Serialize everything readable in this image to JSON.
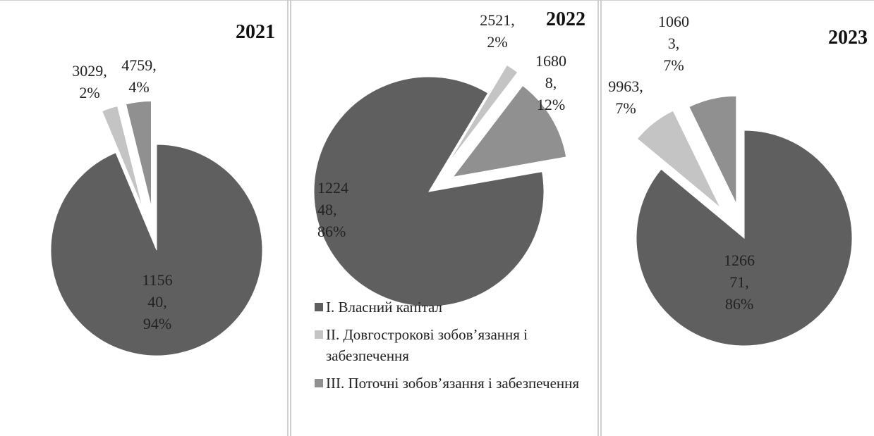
{
  "chart_data": [
    {
      "type": "pie",
      "title": "2021",
      "categories": [
        "I. Власний капітал",
        "II. Довгострокові зобов’язання і забезпечення",
        "III. Поточні зобов’язання і забезпечення"
      ],
      "values": [
        115640,
        3029,
        4759
      ],
      "value_labels": [
        "115640, 94%",
        "3029, 2%",
        "4759, 4%"
      ],
      "colors": [
        "#5f5f5f",
        "#c4c4c4",
        "#909090"
      ],
      "legend": false
    },
    {
      "type": "pie",
      "title": "2022",
      "categories": [
        "I. Власний капітал",
        "II. Довгострокові зобов’язання і забезпечення",
        "III. Поточні зобов’язання і забезпечення"
      ],
      "values": [
        122448,
        2521,
        16808
      ],
      "value_labels": [
        "122448, 86%",
        "2521, 2%",
        "16808, 12%"
      ],
      "colors": [
        "#5f5f5f",
        "#c4c4c4",
        "#909090"
      ],
      "legend": true
    },
    {
      "type": "pie",
      "title": "2023",
      "categories": [
        "I. Власний капітал",
        "II. Довгострокові зобов’язання і забезпечення",
        "III. Поточні зобов’язання і забезпечення"
      ],
      "values": [
        126671,
        9963,
        10603
      ],
      "value_labels": [
        "126671, 86%",
        "9963, 7%",
        "10603, 7%"
      ],
      "colors": [
        "#5f5f5f",
        "#c4c4c4",
        "#909090"
      ],
      "legend": false
    }
  ]
}
